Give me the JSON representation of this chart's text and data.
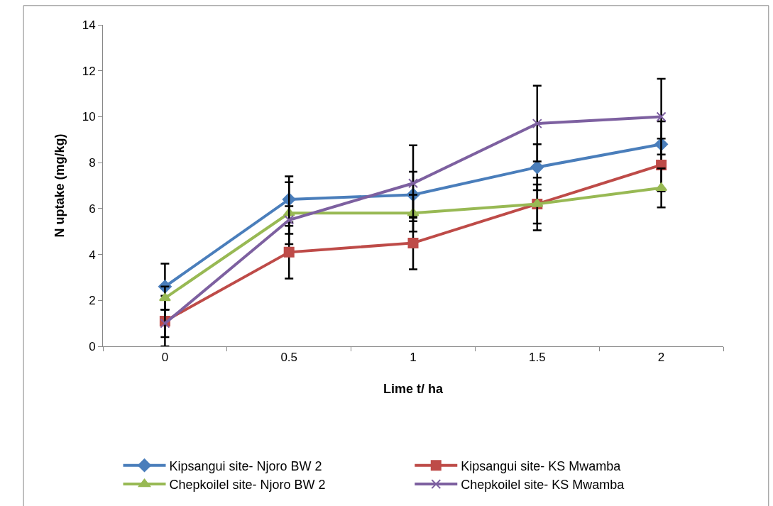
{
  "chart_data": {
    "type": "line",
    "xlabel": "Lime t/ ha",
    "ylabel": "N uptake (mg/kg)",
    "categories": [
      "0",
      "0.5",
      "1",
      "1.5",
      "2"
    ],
    "ylim": [
      0,
      14
    ],
    "yticks": [
      0,
      2,
      4,
      6,
      8,
      10,
      12,
      14
    ],
    "legend": "bottom",
    "series": [
      {
        "name": "Kipsangui site- Njoro BW 2",
        "color": "#4a7ebb",
        "marker": "diamond",
        "values": [
          2.6,
          6.4,
          6.6,
          7.8,
          8.8
        ],
        "errors": [
          1.0,
          1.0,
          1.0,
          1.0,
          1.0
        ]
      },
      {
        "name": "Kipsangui site- KS Mwamba",
        "color": "#be4b48",
        "marker": "square",
        "values": [
          1.1,
          4.1,
          4.5,
          6.2,
          7.9
        ],
        "errors": [
          1.1,
          1.15,
          1.15,
          1.15,
          1.15
        ]
      },
      {
        "name": "Chepkoilel site- Njoro BW 2",
        "color": "#98b954",
        "marker": "triangle",
        "values": [
          2.1,
          5.8,
          5.8,
          6.2,
          6.9
        ],
        "errors": [
          0.5,
          1.35,
          0.8,
          0.85,
          0.85
        ]
      },
      {
        "name": "Chepkoilel site- KS Mwamba",
        "color": "#7d60a0",
        "marker": "cross",
        "values": [
          1.0,
          5.5,
          7.1,
          9.7,
          10.0
        ],
        "errors": [
          0.6,
          0.6,
          1.65,
          1.65,
          1.65
        ]
      }
    ]
  }
}
